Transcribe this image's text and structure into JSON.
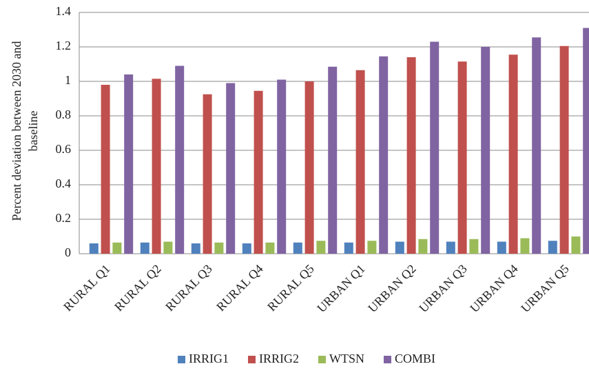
{
  "chart_data": {
    "type": "bar",
    "y_label": [
      "Percent deviation between 2030 and",
      "baseline"
    ],
    "categories": [
      "RURAL Q1",
      "RURAL Q2",
      "RURAL Q3",
      "RURAL Q4",
      "RURAL Q5",
      "URBAN Q1",
      "URBAN Q2",
      "URBAN Q3",
      "URBAN Q4",
      "URBAN Q5"
    ],
    "series": [
      {
        "name": "IRRIG1",
        "color": "#4f81bd",
        "values": [
          0.06,
          0.065,
          0.06,
          0.06,
          0.065,
          0.065,
          0.07,
          0.07,
          0.07,
          0.075
        ]
      },
      {
        "name": "IRRIG2",
        "color": "#c0504d",
        "values": [
          0.98,
          1.015,
          0.925,
          0.945,
          1.0,
          1.065,
          1.14,
          1.115,
          1.155,
          1.205
        ]
      },
      {
        "name": "WTSN",
        "color": "#9bbb59",
        "values": [
          0.065,
          0.07,
          0.065,
          0.065,
          0.075,
          0.075,
          0.085,
          0.085,
          0.09,
          0.1
        ]
      },
      {
        "name": "COMBI",
        "color": "#8064a2",
        "values": [
          1.04,
          1.09,
          0.99,
          1.01,
          1.085,
          1.145,
          1.23,
          1.2,
          1.255,
          1.31
        ]
      }
    ],
    "ylim": [
      0,
      1.4
    ],
    "yticks": [
      0,
      0.2,
      0.4,
      0.6,
      0.8,
      1,
      1.2,
      1.4
    ],
    "grid": true,
    "legend": "bottom"
  }
}
